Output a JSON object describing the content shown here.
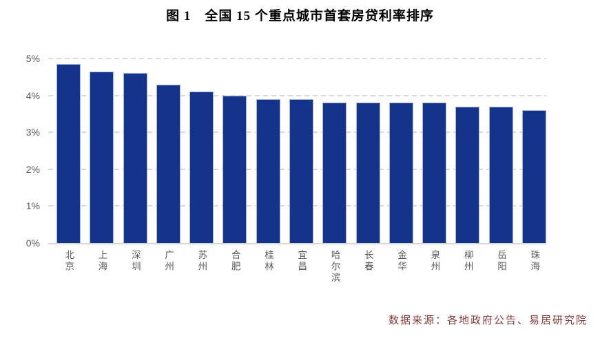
{
  "title": "图 1　全国 15 个重点城市首套房贷利率排序",
  "caption": "数据来源：各地政府公告、易居研究院",
  "colors": {
    "bar_fill": "#13348a",
    "bar_border": "#a9b3d2",
    "gridline": "#d9d9d9",
    "axis_line": "#d6d6d6",
    "tick_label": "#595959",
    "title_text": "#000000",
    "caption_text": "#833a36"
  },
  "chart_data": {
    "type": "bar",
    "title": "图 1　全国 15 个重点城市首套房贷利率排序",
    "categories": [
      "北京",
      "上海",
      "深圳",
      "广州",
      "苏州",
      "合肥",
      "桂林",
      "宜昌",
      "哈尔滨",
      "长春",
      "金华",
      "泉州",
      "柳州",
      "岳阳",
      "珠海"
    ],
    "values": [
      4.85,
      4.65,
      4.6,
      4.3,
      4.1,
      4.0,
      3.9,
      3.9,
      3.8,
      3.8,
      3.8,
      3.8,
      3.7,
      3.7,
      3.6
    ],
    "unit": "%",
    "xlabel": "",
    "ylabel": "",
    "ylim": [
      0,
      5
    ],
    "yticks": [
      "0%",
      "1%",
      "2%",
      "3%",
      "4%",
      "5%"
    ],
    "grid": "dashed horizontal",
    "legend": "none",
    "source": "数据来源：各地政府公告、易居研究院"
  }
}
